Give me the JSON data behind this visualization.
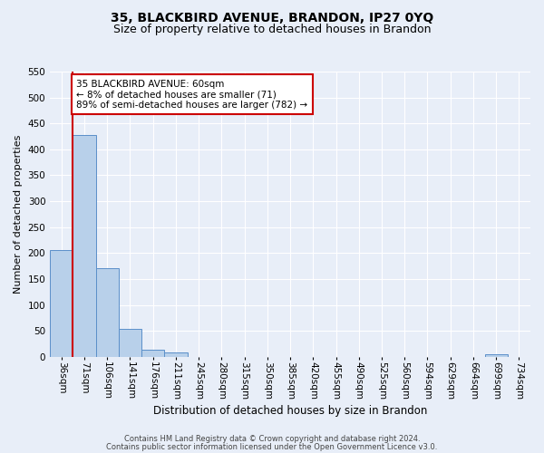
{
  "title1": "35, BLACKBIRD AVENUE, BRANDON, IP27 0YQ",
  "title2": "Size of property relative to detached houses in Brandon",
  "xlabel": "Distribution of detached houses by size in Brandon",
  "ylabel": "Number of detached properties",
  "bin_labels": [
    "36sqm",
    "71sqm",
    "106sqm",
    "141sqm",
    "176sqm",
    "211sqm",
    "245sqm",
    "280sqm",
    "315sqm",
    "350sqm",
    "385sqm",
    "420sqm",
    "455sqm",
    "490sqm",
    "525sqm",
    "560sqm",
    "594sqm",
    "629sqm",
    "664sqm",
    "699sqm",
    "734sqm"
  ],
  "bar_values": [
    205,
    428,
    170,
    53,
    13,
    9,
    0,
    0,
    0,
    0,
    0,
    0,
    0,
    0,
    0,
    0,
    0,
    0,
    0,
    5,
    0
  ],
  "bar_color": "#b8d0ea",
  "bar_edge_color": "#5b8fc9",
  "vline_color": "#cc0000",
  "annotation_text": "35 BLACKBIRD AVENUE: 60sqm\n← 8% of detached houses are smaller (71)\n89% of semi-detached houses are larger (782) →",
  "annotation_box_color": "#ffffff",
  "annotation_box_edge": "#cc0000",
  "ylim": [
    0,
    550
  ],
  "yticks": [
    0,
    50,
    100,
    150,
    200,
    250,
    300,
    350,
    400,
    450,
    500,
    550
  ],
  "footer1": "Contains HM Land Registry data © Crown copyright and database right 2024.",
  "footer2": "Contains public sector information licensed under the Open Government Licence v3.0.",
  "bg_color": "#e8eef8",
  "grid_color": "#ffffff",
  "title1_fontsize": 10,
  "title2_fontsize": 9,
  "xlabel_fontsize": 8.5,
  "ylabel_fontsize": 8,
  "footer_fontsize": 6,
  "tick_fontsize": 7.5,
  "annotation_fontsize": 7.5
}
